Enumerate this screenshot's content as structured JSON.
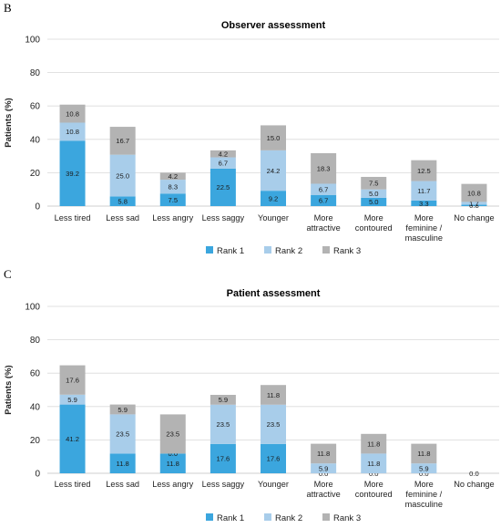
{
  "colors": {
    "rank1": "#3ba6de",
    "rank2": "#a8cdea",
    "rank3": "#b3b3b3"
  },
  "chart_data": [
    {
      "type": "bar",
      "stacked": true,
      "panel": "B",
      "title": "Observer assessment",
      "ylabel": "Patients (%)",
      "ylim": [
        0,
        100
      ],
      "yticks": [
        0,
        20,
        40,
        60,
        80,
        100
      ],
      "grid": true,
      "legend": "bottom",
      "categories": [
        [
          "Less tired"
        ],
        [
          "Less sad"
        ],
        [
          "Less angry"
        ],
        [
          "Less saggy"
        ],
        [
          "Younger"
        ],
        [
          "More",
          "attractive"
        ],
        [
          "More",
          "contoured"
        ],
        [
          "More",
          "feminine /",
          "masculine"
        ],
        [
          "No change"
        ]
      ],
      "series": [
        {
          "name": "Rank 1",
          "labels": [
            "39.2",
            "5.8",
            "7.5",
            "22.5",
            "9.2",
            "6.7",
            "5.0",
            "3.3",
            "0.8"
          ],
          "values": [
            39.2,
            5.8,
            7.5,
            22.5,
            9.2,
            6.7,
            5.0,
            3.3,
            0.8
          ]
        },
        {
          "name": "Rank 2",
          "labels": [
            "10.8",
            "25.0",
            "8.3",
            "6.7",
            "24.2",
            "6.7",
            "5.0",
            "11.7",
            "1.7"
          ],
          "values": [
            10.8,
            25.0,
            8.3,
            6.7,
            24.2,
            6.7,
            5.0,
            11.7,
            1.7
          ]
        },
        {
          "name": "Rank 3",
          "labels": [
            "10.8",
            "16.7",
            "4.2",
            "4.2",
            "15.0",
            "18.3",
            "7.5",
            "12.5",
            "10.8"
          ],
          "values": [
            10.8,
            16.7,
            4.2,
            4.2,
            15.0,
            18.3,
            7.5,
            12.5,
            10.8
          ]
        }
      ]
    },
    {
      "type": "bar",
      "stacked": true,
      "panel": "C",
      "title": "Patient assessment",
      "ylabel": "Patients (%)",
      "ylim": [
        0,
        100
      ],
      "yticks": [
        0,
        20,
        40,
        60,
        80,
        100
      ],
      "grid": true,
      "legend": "bottom",
      "categories": [
        [
          "Less tired"
        ],
        [
          "Less sad"
        ],
        [
          "Less angry"
        ],
        [
          "Less saggy"
        ],
        [
          "Younger"
        ],
        [
          "More",
          "attractive"
        ],
        [
          "More",
          "contoured"
        ],
        [
          "More",
          "feminine /",
          "masculine"
        ],
        [
          "No change"
        ]
      ],
      "series": [
        {
          "name": "Rank 1",
          "labels": [
            "41.2",
            "11.8",
            "11.8",
            "17.6",
            "17.6",
            "0.0",
            "0.0",
            "0.0",
            null
          ],
          "values": [
            41.2,
            11.8,
            11.8,
            17.6,
            17.6,
            0.0,
            0.0,
            0.0,
            0
          ]
        },
        {
          "name": "Rank 2",
          "labels": [
            "5.9",
            "23.5",
            "0.0",
            "23.5",
            "23.5",
            "5.9",
            "11.8",
            "5.9",
            null
          ],
          "values": [
            5.9,
            23.5,
            0.0,
            23.5,
            23.5,
            5.9,
            11.8,
            5.9,
            0
          ]
        },
        {
          "name": "Rank 3",
          "labels": [
            "17.6",
            "5.9",
            "23.5",
            "5.9",
            "11.8",
            "11.8",
            "11.8",
            "11.8",
            "0.0"
          ],
          "values": [
            17.6,
            5.9,
            23.5,
            5.9,
            11.8,
            11.8,
            11.8,
            11.8,
            0.0
          ]
        }
      ]
    }
  ]
}
